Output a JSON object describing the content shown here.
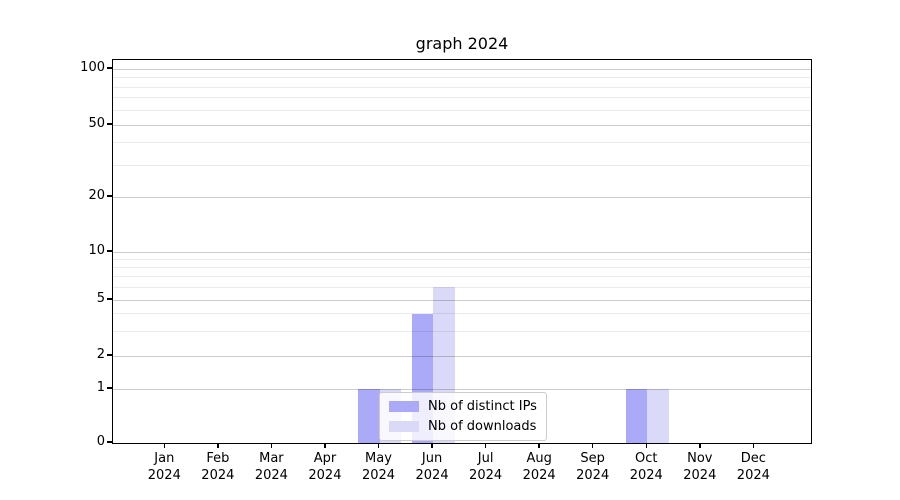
{
  "chart_data": {
    "type": "bar",
    "title": "graph 2024",
    "x_months": [
      "Jan",
      "Feb",
      "Mar",
      "Apr",
      "May",
      "Jun",
      "Jul",
      "Aug",
      "Sep",
      "Oct",
      "Nov",
      "Dec"
    ],
    "x_year": "2024",
    "series": [
      {
        "name": "Nb of distinct IPs",
        "color": "#aaaaf8",
        "values": [
          0,
          0,
          0,
          0,
          1,
          4,
          0,
          0,
          0,
          1,
          0,
          0
        ]
      },
      {
        "name": "Nb of downloads",
        "color": "#dadaf8",
        "values": [
          0,
          0,
          0,
          0,
          1,
          6,
          0,
          0,
          0,
          1,
          0,
          0
        ]
      }
    ],
    "y_ticks_major": [
      0,
      1,
      2,
      5,
      10,
      20,
      50,
      100
    ],
    "y_ticks_minor": [
      3,
      4,
      6,
      7,
      8,
      9,
      30,
      40,
      60,
      70,
      80,
      90
    ],
    "yscale": "log above 1, linear 0-1",
    "ylim": [
      0,
      110
    ],
    "grid": true,
    "legend_position": "lower center"
  },
  "colors": {
    "axis": "#000000",
    "grid_major": "#cccccc",
    "grid_minor": "#ebebeb",
    "background": "#ffffff"
  }
}
